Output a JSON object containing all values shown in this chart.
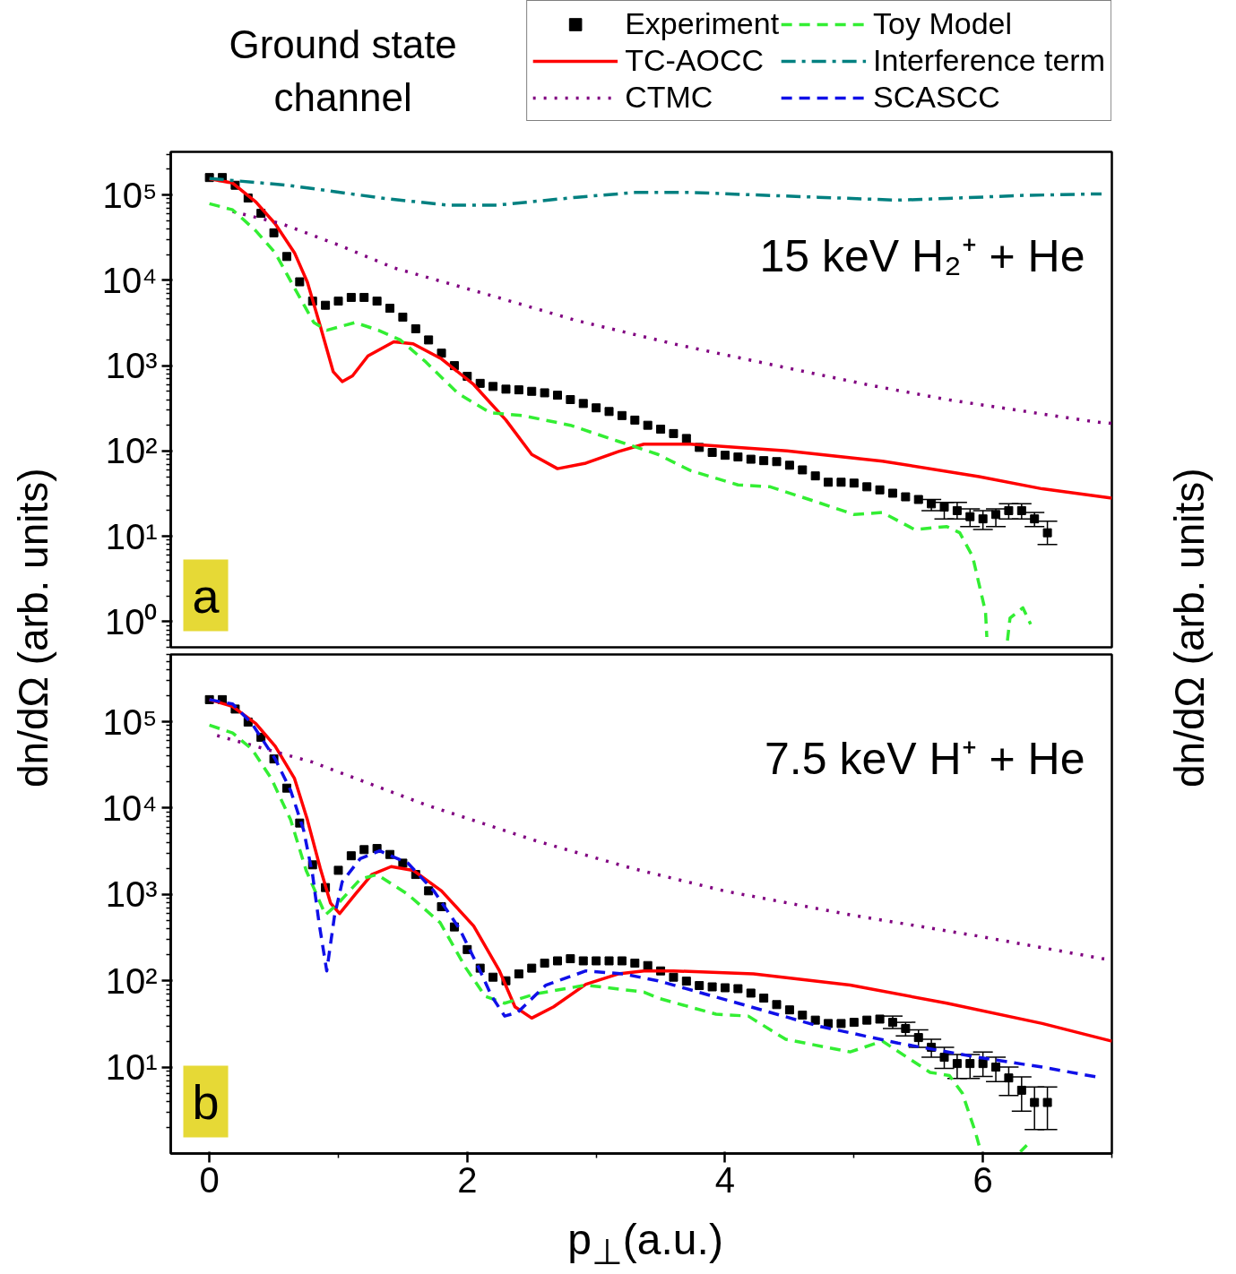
{
  "chart_data": [
    {
      "type": "line",
      "title": "Ground state channel",
      "ylabel": "dn/dΩ (arb. units)",
      "y2label": "dn/dΩ (arb. units)",
      "annotations": [
        "15 keV H₂⁺ + He",
        "a"
      ],
      "xlim": [
        -0.3,
        7.0
      ],
      "xticks": [
        0,
        2,
        4,
        6
      ],
      "ylim": [
        0.5,
        320000
      ],
      "yticks": [
        {
          "value": 1,
          "label": "10⁰"
        },
        {
          "value": 10,
          "label": "10¹"
        },
        {
          "value": 100,
          "label": "10²"
        },
        {
          "value": 1000,
          "label": "10³"
        },
        {
          "value": 10000,
          "label": "10⁴"
        },
        {
          "value": 100000,
          "label": "10⁵"
        }
      ],
      "log": true,
      "grid": false,
      "legend": "top right",
      "tick_labels": "y",
      "series": [
        {
          "name": "Experiment",
          "type": "scatter",
          "marker": "square",
          "color": "#000000",
          "x": [
            0.0,
            0.1,
            0.2,
            0.3,
            0.4,
            0.5,
            0.6,
            0.7,
            0.8,
            0.9,
            1.0,
            1.1,
            1.2,
            1.3,
            1.4,
            1.5,
            1.6,
            1.7,
            1.8,
            1.9,
            2.0,
            2.1,
            2.2,
            2.3,
            2.4,
            2.5,
            2.6,
            2.7,
            2.8,
            2.9,
            3.0,
            3.1,
            3.2,
            3.3,
            3.4,
            3.5,
            3.6,
            3.7,
            3.8,
            3.9,
            4.0,
            4.1,
            4.2,
            4.3,
            4.4,
            4.5,
            4.6,
            4.7,
            4.8,
            4.9,
            5.0,
            5.1,
            5.2,
            5.3,
            5.4,
            5.5,
            5.6,
            5.7,
            5.8,
            5.9,
            6.0,
            6.1,
            6.2,
            6.3,
            6.4,
            6.5
          ],
          "values": [
            160000,
            160000,
            130000,
            92000,
            61000,
            36000,
            19000,
            9600,
            5700,
            5100,
            5700,
            6300,
            6300,
            5700,
            4700,
            3700,
            2700,
            2000,
            1400,
            1000,
            750,
            620,
            570,
            530,
            520,
            500,
            480,
            450,
            400,
            360,
            320,
            290,
            260,
            230,
            200,
            180,
            160,
            140,
            110,
            96,
            89,
            85,
            80,
            77,
            75,
            68,
            60,
            51,
            43,
            43,
            42,
            38,
            35,
            32,
            29,
            27,
            24,
            22,
            20,
            17,
            16,
            18,
            20,
            20,
            16,
            11
          ],
          "errors": [
            null,
            null,
            null,
            null,
            null,
            null,
            null,
            null,
            null,
            null,
            null,
            null,
            null,
            null,
            null,
            null,
            null,
            null,
            null,
            null,
            null,
            null,
            null,
            null,
            null,
            null,
            null,
            null,
            null,
            null,
            null,
            null,
            null,
            null,
            null,
            null,
            null,
            null,
            null,
            null,
            null,
            null,
            null,
            null,
            null,
            null,
            null,
            null,
            null,
            null,
            null,
            null,
            null,
            null,
            null,
            null,
            [
              20,
              27
            ],
            [
              16,
              25
            ],
            [
              16,
              25
            ],
            [
              13,
              21
            ],
            [
              12,
              20
            ],
            [
              13,
              21
            ],
            [
              16,
              24
            ],
            [
              16,
              24
            ],
            [
              13,
              19
            ],
            [
              8,
              15
            ]
          ]
        },
        {
          "name": "TC-AOCC",
          "line_style": "solid",
          "color": "#ff0000",
          "x": [
            0,
            0.18,
            0.36,
            0.51,
            0.66,
            0.76,
            0.86,
            0.96,
            1.03,
            1.11,
            1.23,
            1.43,
            1.58,
            1.8,
            2.05,
            2.3,
            2.5,
            2.7,
            2.92,
            3.17,
            3.37,
            3.73,
            4.48,
            5.22,
            5.97,
            6.46,
            7.0
          ],
          "values": [
            155000,
            138000,
            83000,
            46000,
            21000,
            9500,
            2900,
            850,
            650,
            760,
            1300,
            1900,
            1800,
            1200,
            600,
            230,
            91,
            62,
            72,
            98,
            120,
            120,
            100,
            76,
            50,
            36,
            28
          ]
        },
        {
          "name": "CTMC",
          "line_style": "dotted",
          "color": "#800080",
          "x": [
            0.18,
            0.56,
            1.0,
            1.43,
            2.16,
            2.84,
            3.6,
            4.48,
            5.1,
            5.72,
            6.86,
            7.0
          ],
          "values": [
            64000,
            46000,
            26000,
            14000,
            6800,
            3400,
            1800,
            940,
            600,
            400,
            220,
            210
          ]
        },
        {
          "name": "Toy Model",
          "line_style": "dashed",
          "color": "#33ee33",
          "x": [
            0,
            0.18,
            0.36,
            0.51,
            0.66,
            0.81,
            0.91,
            1.13,
            1.31,
            1.48,
            1.68,
            1.93,
            2.18,
            2.43,
            2.8,
            3.17,
            3.48,
            3.73,
            4.1,
            4.35,
            4.72,
            5.0,
            5.22,
            5.47,
            5.72,
            5.82,
            5.92,
            6.02,
            6.03,
            6.1,
            6.19,
            6.21,
            6.31,
            6.37
          ],
          "values": [
            79000,
            67000,
            38000,
            21000,
            8100,
            3200,
            2600,
            3200,
            2600,
            2000,
            1100,
            470,
            280,
            260,
            200,
            130,
            91,
            59,
            40,
            38,
            25,
            18,
            19,
            12,
            13,
            11,
            5.8,
            1.3,
            0.66,
            null,
            0.6,
            1.1,
            1.45,
            0.93
          ]
        },
        {
          "name": "Interference term",
          "line_style": "dashdot",
          "color": "#008080",
          "x": [
            0,
            0.61,
            1.36,
            1.85,
            2.23,
            2.85,
            3.3,
            3.73,
            4.72,
            5.34,
            5.72,
            6.33,
            6.92
          ],
          "values": [
            156000,
            130000,
            91000,
            76000,
            76000,
            94000,
            107000,
            107000,
            94000,
            87000,
            91000,
            99000,
            103000
          ]
        }
      ]
    },
    {
      "type": "line",
      "xlabel": "p$_{⊥}$(a.u.)",
      "annotations": [
        "7.5 keV H⁺ + He",
        "b"
      ],
      "xlim": [
        -0.3,
        7.0
      ],
      "xticks": [
        0,
        2,
        4,
        6
      ],
      "ylim": [
        1,
        600000
      ],
      "yticks": [
        {
          "value": 10,
          "label": "10¹"
        },
        {
          "value": 100,
          "label": "10²"
        },
        {
          "value": 1000,
          "label": "10³"
        },
        {
          "value": 10000,
          "label": "10⁴"
        },
        {
          "value": 100000,
          "label": "10⁵"
        }
      ],
      "log": true,
      "grid": false,
      "series": [
        {
          "type": "scatter",
          "marker": "square",
          "color": "#000000",
          "x": [
            0.0,
            0.1,
            0.2,
            0.3,
            0.4,
            0.5,
            0.6,
            0.7,
            0.8,
            0.9,
            1.0,
            1.1,
            1.2,
            1.3,
            1.4,
            1.5,
            1.6,
            1.7,
            1.8,
            1.9,
            2.0,
            2.1,
            2.2,
            2.3,
            2.4,
            2.5,
            2.6,
            2.7,
            2.8,
            2.9,
            3.0,
            3.1,
            3.2,
            3.3,
            3.4,
            3.5,
            3.6,
            3.7,
            3.8,
            3.9,
            4.0,
            4.1,
            4.2,
            4.3,
            4.4,
            4.5,
            4.6,
            4.7,
            4.8,
            4.9,
            5.0,
            5.1,
            5.2,
            5.3,
            5.4,
            5.5,
            5.6,
            5.7,
            5.8,
            5.9,
            6.0,
            6.1,
            6.2,
            6.3,
            6.4,
            6.5
          ],
          "values": [
            180000,
            180000,
            140000,
            99000,
            66000,
            37000,
            17000,
            6700,
            2200,
            1200,
            1900,
            2800,
            3300,
            3400,
            2900,
            2300,
            1700,
            1100,
            720,
            420,
            230,
            140,
            110,
            100,
            120,
            140,
            160,
            170,
            180,
            170,
            170,
            170,
            170,
            160,
            150,
            130,
            110,
            99,
            88,
            85,
            83,
            81,
            72,
            63,
            53,
            46,
            40,
            35,
            32,
            32,
            33,
            35,
            36,
            33,
            28,
            22,
            17,
            13,
            11,
            11,
            11,
            10,
            7.5,
            5.4,
            3.9,
            3.9
          ],
          "errors": [
            null,
            null,
            null,
            null,
            null,
            null,
            null,
            null,
            null,
            null,
            null,
            null,
            null,
            null,
            null,
            null,
            null,
            null,
            null,
            null,
            null,
            null,
            null,
            null,
            null,
            null,
            null,
            null,
            null,
            null,
            null,
            null,
            null,
            null,
            null,
            null,
            null,
            null,
            null,
            null,
            null,
            null,
            null,
            null,
            null,
            null,
            null,
            null,
            null,
            null,
            null,
            null,
            null,
            [
              28,
              39
            ],
            [
              23,
              33
            ],
            [
              17,
              27
            ],
            [
              13,
              21
            ],
            [
              9.7,
              17
            ],
            [
              7.4,
              14
            ],
            [
              7.4,
              14
            ],
            [
              7.8,
              15
            ],
            [
              6.8,
              13
            ],
            [
              4.7,
              10
            ],
            [
              3.1,
              7.7
            ],
            [
              1.9,
              5.9
            ],
            [
              1.9,
              5.9
            ]
          ]
        },
        {
          "line_style": "solid",
          "color": "#ff0000",
          "x": [
            0,
            0.18,
            0.36,
            0.51,
            0.66,
            0.76,
            0.86,
            0.94,
            1.01,
            1.13,
            1.26,
            1.41,
            1.58,
            1.8,
            2.05,
            2.25,
            2.37,
            2.5,
            2.67,
            2.92,
            3.17,
            3.37,
            3.6,
            4.22,
            4.97,
            5.72,
            6.46,
            7.0
          ],
          "values": [
            180000,
            150000,
            95000,
            52000,
            22000,
            7300,
            2000,
            790,
            600,
            1000,
            1700,
            2100,
            1900,
            1100,
            430,
            130,
            50,
            37,
            50,
            91,
            120,
            130,
            130,
            120,
            89,
            55,
            32,
            20
          ]
        },
        {
          "line_style": "dotted",
          "color": "#800080",
          "x": [
            0.06,
            0.8,
            1.67,
            2.55,
            3.28,
            3.99,
            4.97,
            5.96,
            6.93,
            7.0
          ],
          "values": [
            69000,
            34000,
            11000,
            4100,
            2000,
            1100,
            580,
            330,
            180,
            175
          ]
        },
        {
          "line_style": "dashed",
          "color": "#33ee33",
          "x": [
            0,
            0.18,
            0.33,
            0.48,
            0.63,
            0.75,
            0.85,
            0.9,
            1.0,
            1.17,
            1.3,
            1.54,
            1.79,
            1.99,
            2.14,
            2.29,
            2.54,
            2.92,
            3.37,
            3.48,
            3.93,
            4.18,
            4.47,
            4.97,
            5.22,
            5.59,
            5.74,
            5.84,
            5.94,
            5.98,
            6.1,
            6.29,
            6.34
          ],
          "values": [
            91000,
            74000,
            48000,
            22000,
            7300,
            1900,
            860,
            580,
            790,
            1500,
            1700,
            1000,
            470,
            140,
            66,
            55,
            71,
            89,
            74,
            63,
            41,
            39,
            21,
            15,
            20,
            8.7,
            8,
            5,
            1.8,
            1.1,
            null,
            1.05,
            1.25
          ]
        },
        {
          "name": "SCASCC",
          "line_style": "dashed",
          "color": "#1010e8",
          "x": [
            0,
            0.18,
            0.33,
            0.51,
            0.63,
            0.73,
            0.8,
            0.85,
            0.91,
            0.97,
            1.03,
            1.17,
            1.32,
            1.54,
            1.74,
            1.94,
            2.09,
            2.19,
            2.29,
            2.39,
            2.61,
            2.92,
            3.21,
            3.48,
            4.1,
            4.72,
            5.34,
            5.96,
            6.46,
            6.88
          ],
          "values": [
            180000,
            160000,
            95000,
            37000,
            16000,
            5600,
            1700,
            470,
            130,
            560,
            1400,
            2600,
            3200,
            2300,
            1100,
            400,
            140,
            66,
            39,
            43,
            89,
            130,
            120,
            100,
            55,
            30,
            19,
            13,
            10,
            7.7
          ]
        }
      ]
    }
  ]
}
